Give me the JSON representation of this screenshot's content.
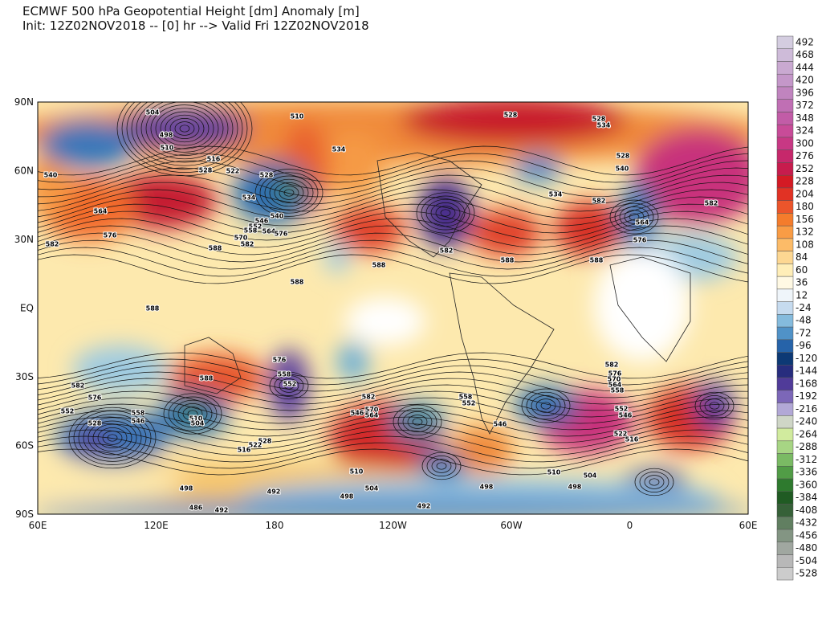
{
  "header": {
    "title": "ECMWF 500 hPa Geopotential Height [dm] Anomaly [m]",
    "subtitle": "Init: 12Z02NOV2018 -- [0] hr --> Valid Fri 12Z02NOV2018"
  },
  "map": {
    "lat_labels": [
      "90N",
      "60N",
      "30N",
      "EQ",
      "30S",
      "60S",
      "90S"
    ],
    "lon_labels": [
      "60E",
      "120E",
      "180",
      "120W",
      "60W",
      "0",
      "60E"
    ],
    "contour_labels": [
      "504",
      "510",
      "498",
      "510",
      "516",
      "528",
      "522",
      "528",
      "534",
      "540",
      "546",
      "552",
      "558",
      "564",
      "576",
      "570",
      "582",
      "588",
      "588",
      "588",
      "588",
      "588",
      "528",
      "528",
      "534",
      "534",
      "528",
      "540",
      "534",
      "582",
      "582",
      "564",
      "576",
      "582",
      "540",
      "564",
      "582",
      "576",
      "582",
      "576",
      "552",
      "528",
      "558",
      "546",
      "510",
      "504",
      "588",
      "576",
      "558",
      "552",
      "582",
      "570",
      "564",
      "546",
      "558",
      "552",
      "546",
      "582",
      "576",
      "570",
      "564",
      "558",
      "552",
      "546",
      "522",
      "516",
      "528",
      "522",
      "516",
      "498",
      "492",
      "492",
      "486",
      "510",
      "504",
      "498",
      "492",
      "498",
      "510",
      "504",
      "498",
      "588"
    ]
  },
  "colorbar": {
    "levels": [
      492,
      468,
      444,
      420,
      396,
      372,
      348,
      324,
      300,
      276,
      252,
      228,
      204,
      180,
      156,
      132,
      108,
      84,
      60,
      36,
      12,
      -24,
      -48,
      -72,
      -96,
      -120,
      -144,
      -168,
      -192,
      -216,
      -240,
      -264,
      -288,
      -312,
      -336,
      -360,
      -384,
      -408,
      -432,
      -456,
      -480,
      -504,
      -528
    ]
  }
}
